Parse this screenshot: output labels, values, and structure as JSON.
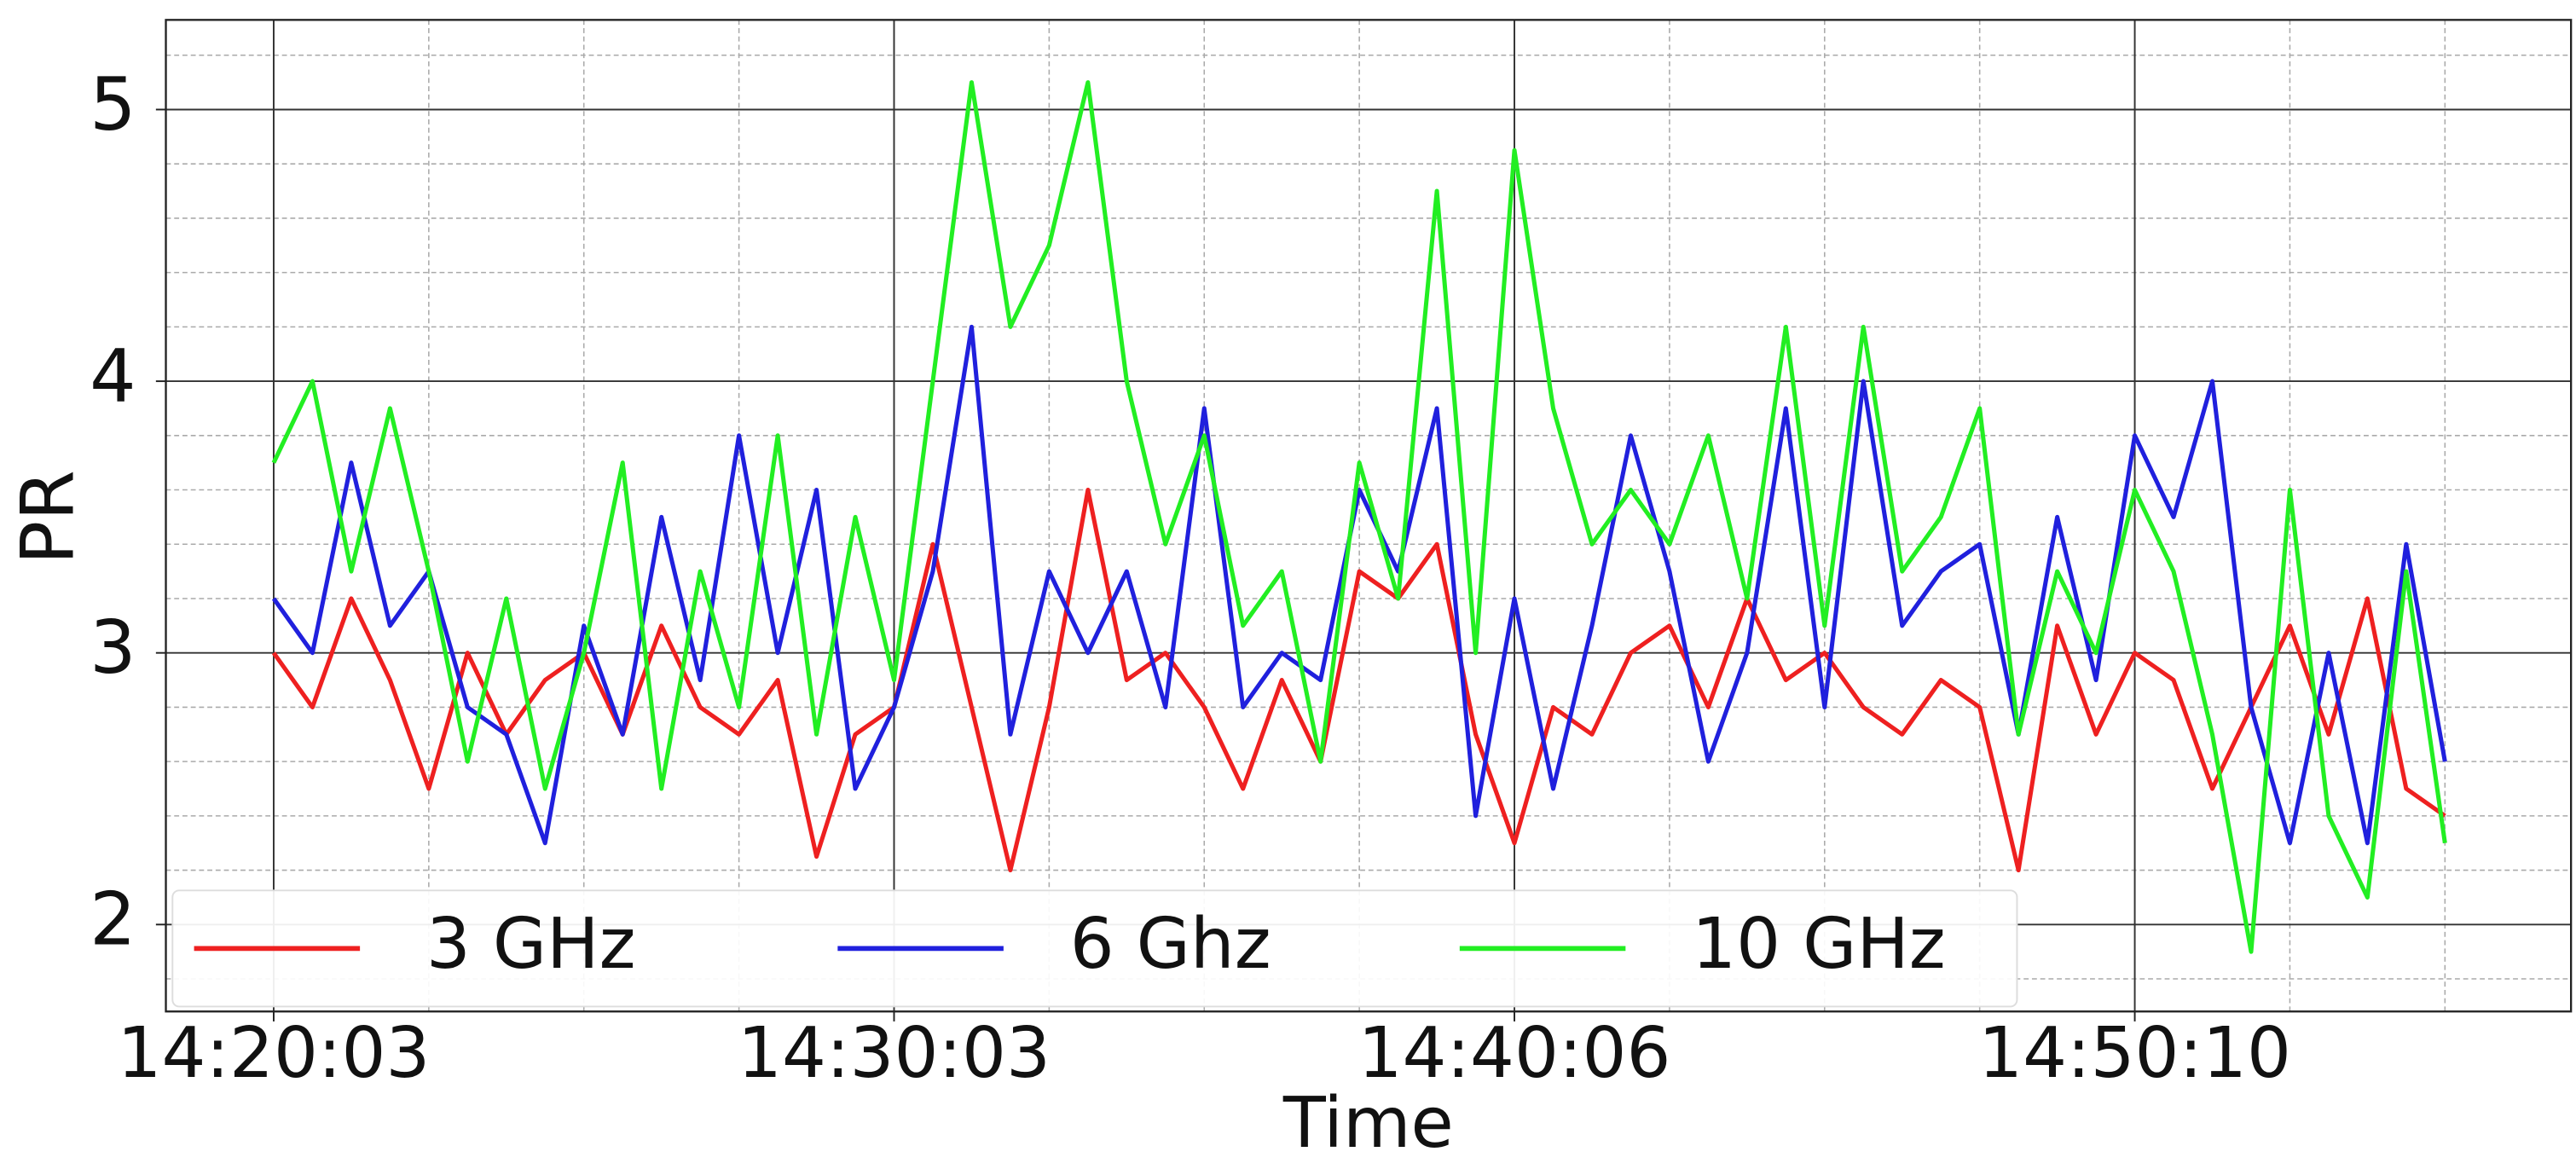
{
  "chart_data": {
    "type": "line",
    "y_label": "PR",
    "x_label": "Time",
    "categories": [
      "14:20:03",
      null,
      null,
      null,
      null,
      null,
      null,
      null,
      null,
      null,
      null,
      null,
      null,
      null,
      null,
      null,
      "14:30:03",
      null,
      null,
      null,
      null,
      null,
      null,
      null,
      null,
      null,
      null,
      null,
      null,
      null,
      null,
      null,
      "14:40:06",
      null,
      null,
      null,
      null,
      null,
      null,
      null,
      null,
      null,
      null,
      null,
      null,
      null,
      null,
      null,
      "14:50:10",
      null,
      null,
      null,
      null,
      null,
      null,
      null,
      null
    ],
    "series": [
      {
        "name": "3 GHz",
        "color": "#ee2020",
        "values": [
          3.0,
          2.8,
          3.2,
          2.9,
          2.5,
          3.0,
          2.7,
          2.9,
          3.0,
          2.7,
          3.1,
          2.8,
          2.7,
          2.9,
          2.25,
          2.7,
          2.8,
          3.4,
          2.8,
          2.2,
          2.8,
          3.6,
          2.9,
          3.0,
          2.8,
          2.5,
          2.9,
          2.6,
          3.3,
          3.2,
          3.4,
          2.7,
          2.3,
          2.8,
          2.7,
          3.0,
          3.1,
          2.8,
          3.2,
          2.9,
          3.0,
          2.8,
          2.7,
          2.9,
          2.8,
          2.2,
          3.1,
          2.7,
          3.0,
          2.9,
          2.5,
          2.8,
          3.1,
          2.7,
          3.2,
          2.5,
          2.4
        ]
      },
      {
        "name": "6 Ghz",
        "color": "#2020dd",
        "values": [
          3.2,
          3.0,
          3.7,
          3.1,
          3.3,
          2.8,
          2.7,
          2.3,
          3.1,
          2.7,
          3.5,
          2.9,
          3.8,
          3.0,
          3.6,
          2.5,
          2.8,
          3.3,
          4.2,
          2.7,
          3.3,
          3.0,
          3.3,
          2.8,
          3.9,
          2.8,
          3.0,
          2.9,
          3.6,
          3.3,
          3.9,
          2.4,
          3.2,
          2.5,
          3.1,
          3.8,
          3.3,
          2.6,
          3.0,
          3.9,
          2.8,
          4.0,
          3.1,
          3.3,
          3.4,
          2.7,
          3.5,
          2.9,
          3.8,
          3.5,
          4.0,
          2.8,
          2.3,
          3.0,
          2.3,
          3.4,
          2.6
        ]
      },
      {
        "name": "10 GHz",
        "color": "#22ee22",
        "values": [
          3.7,
          4.0,
          3.3,
          3.9,
          3.3,
          2.6,
          3.2,
          2.5,
          3.0,
          3.7,
          2.5,
          3.3,
          2.8,
          3.8,
          2.7,
          3.5,
          2.9,
          4.0,
          5.1,
          4.2,
          4.5,
          5.1,
          4.0,
          3.4,
          3.8,
          3.1,
          3.3,
          2.6,
          3.7,
          3.2,
          4.7,
          3.0,
          4.85,
          3.9,
          3.4,
          3.6,
          3.4,
          3.8,
          3.2,
          4.2,
          3.1,
          4.2,
          3.3,
          3.5,
          3.9,
          2.7,
          3.3,
          3.0,
          3.6,
          3.3,
          2.7,
          1.9,
          3.6,
          2.4,
          2.1,
          3.3,
          2.3
        ]
      }
    ],
    "ylim": [
      1.68,
      5.33
    ],
    "yticks": [
      2,
      3,
      4,
      5
    ],
    "yminor_ticks": [
      1.8,
      2.2,
      2.4,
      2.6,
      2.8,
      3.2,
      3.4,
      3.6,
      3.8,
      4.2,
      4.4,
      4.6,
      4.8,
      5.2
    ],
    "grid": true,
    "legend": "lower left"
  }
}
